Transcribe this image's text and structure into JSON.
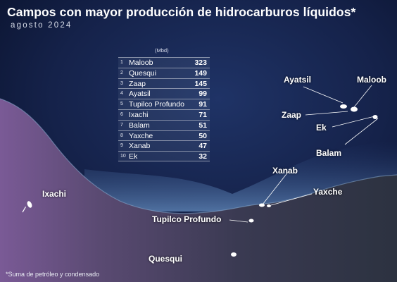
{
  "title": "Campos con mayor producción de hidrocarburos líquidos*",
  "subtitle": "agosto 2024",
  "footnote": "*Suma de petróleo y condensado",
  "table": {
    "unit": "(Mbd)",
    "rows": [
      {
        "rank": "1",
        "name": "Maloob",
        "value": "323"
      },
      {
        "rank": "2",
        "name": "Quesqui",
        "value": "149"
      },
      {
        "rank": "3",
        "name": "Zaap",
        "value": "145"
      },
      {
        "rank": "4",
        "name": "Ayatsil",
        "value": "99"
      },
      {
        "rank": "5",
        "name": "Tupilco Profundo",
        "value": "91"
      },
      {
        "rank": "6",
        "name": "Ixachi",
        "value": "71"
      },
      {
        "rank": "7",
        "name": "Balam",
        "value": "51"
      },
      {
        "rank": "8",
        "name": "Yaxche",
        "value": "50"
      },
      {
        "rank": "9",
        "name": "Xanab",
        "value": "47"
      },
      {
        "rank": "10",
        "name": "Ek",
        "value": "32"
      }
    ]
  },
  "map_labels": {
    "ayatsil": "Ayatsil",
    "maloob": "Maloob",
    "zaap": "Zaap",
    "ek": "Ek",
    "balam": "Balam",
    "xanab": "Xanab",
    "yaxche": "Yaxche",
    "tupilco": "Tupilco Profundo",
    "ixachi": "Ixachi",
    "quesqui": "Quesqui"
  },
  "colors": {
    "sea_deep": "#0b1430",
    "sea_shallow": "#3a5a8c",
    "land": "#35344a",
    "land_west": "#6a4f86",
    "labels": "#ffffff"
  }
}
